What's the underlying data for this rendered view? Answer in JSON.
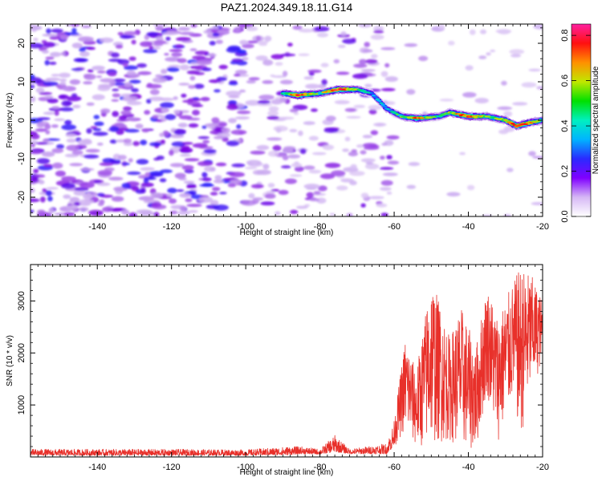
{
  "title": "PAZ1.2024.349.18.11.G14",
  "chart_data": [
    {
      "type": "heatmap",
      "xlabel": "Height of straight line (km)",
      "ylabel": "Frequency (Hz)",
      "xlim": [
        -158,
        -20
      ],
      "ylim": [
        -25,
        25
      ],
      "x_ticks": [
        -140,
        -120,
        -100,
        -80,
        -60,
        -40,
        -20
      ],
      "y_ticks": [
        -20,
        -10,
        0,
        10,
        20
      ],
      "colorbar": {
        "label": "Normalized spectral amplitude",
        "range": [
          0,
          0.85
        ],
        "ticks": [
          0.0,
          0.2,
          0.4,
          0.6,
          0.8
        ],
        "colormap": [
          "#ffffff",
          "#c9a8f0",
          "#7a00e0",
          "#2020ff",
          "#00c8ff",
          "#00e060",
          "#c8e000",
          "#ff8000",
          "#ff0000",
          "#ff2090"
        ]
      },
      "signal_track": [
        {
          "x": -90,
          "freq": 7,
          "amp": 0.45
        },
        {
          "x": -86,
          "freq": 6.5,
          "amp": 0.8
        },
        {
          "x": -80,
          "freq": 7,
          "amp": 0.5
        },
        {
          "x": -75,
          "freq": 8,
          "amp": 0.85
        },
        {
          "x": -70,
          "freq": 8,
          "amp": 0.55
        },
        {
          "x": -66,
          "freq": 7,
          "amp": 0.4
        },
        {
          "x": -62,
          "freq": 3,
          "amp": 0.4
        },
        {
          "x": -58,
          "freq": 1,
          "amp": 0.5
        },
        {
          "x": -54,
          "freq": 0.5,
          "amp": 0.7
        },
        {
          "x": -48,
          "freq": 1,
          "amp": 0.45
        },
        {
          "x": -45,
          "freq": 2,
          "amp": 0.6
        },
        {
          "x": -40,
          "freq": 1,
          "amp": 0.75
        },
        {
          "x": -35,
          "freq": 1,
          "amp": 0.55
        },
        {
          "x": -30,
          "freq": 0,
          "amp": 0.6
        },
        {
          "x": -27,
          "freq": -1.5,
          "amp": 0.8
        },
        {
          "x": -23,
          "freq": -0.5,
          "amp": 0.65
        },
        {
          "x": -20,
          "freq": 0,
          "amp": 0.5
        }
      ]
    },
    {
      "type": "line",
      "xlabel": "Height of straight line (km)",
      "ylabel": "SNR (10 * v/v)",
      "xlim": [
        -158,
        -20
      ],
      "ylim": [
        0,
        3700
      ],
      "x_ticks": [
        -140,
        -120,
        -100,
        -80,
        -60,
        -40,
        -20
      ],
      "y_ticks": [
        1000,
        2000,
        3000
      ],
      "line_color": "#e8302a",
      "envelope": [
        {
          "x": -158,
          "lo": 30,
          "hi": 150
        },
        {
          "x": -120,
          "lo": 30,
          "hi": 150
        },
        {
          "x": -100,
          "lo": 30,
          "hi": 140
        },
        {
          "x": -88,
          "lo": 40,
          "hi": 200
        },
        {
          "x": -85,
          "lo": 60,
          "hi": 200
        },
        {
          "x": -80,
          "lo": 50,
          "hi": 150
        },
        {
          "x": -76,
          "lo": 100,
          "hi": 420
        },
        {
          "x": -72,
          "lo": 60,
          "hi": 150
        },
        {
          "x": -62,
          "lo": 60,
          "hi": 260
        },
        {
          "x": -60,
          "lo": 200,
          "hi": 700
        },
        {
          "x": -57,
          "lo": 500,
          "hi": 2300
        },
        {
          "x": -54,
          "lo": 150,
          "hi": 1650
        },
        {
          "x": -50,
          "lo": 250,
          "hi": 3500
        },
        {
          "x": -45,
          "lo": 300,
          "hi": 2300
        },
        {
          "x": -42,
          "lo": 200,
          "hi": 2900
        },
        {
          "x": -38,
          "lo": 100,
          "hi": 2100
        },
        {
          "x": -35,
          "lo": 1200,
          "hi": 3300
        },
        {
          "x": -32,
          "lo": 300,
          "hi": 2700
        },
        {
          "x": -28,
          "lo": 1100,
          "hi": 3350
        },
        {
          "x": -26,
          "lo": 300,
          "hi": 3650
        },
        {
          "x": -23,
          "lo": 1300,
          "hi": 3500
        },
        {
          "x": -20,
          "lo": 1800,
          "hi": 3000
        }
      ]
    }
  ]
}
